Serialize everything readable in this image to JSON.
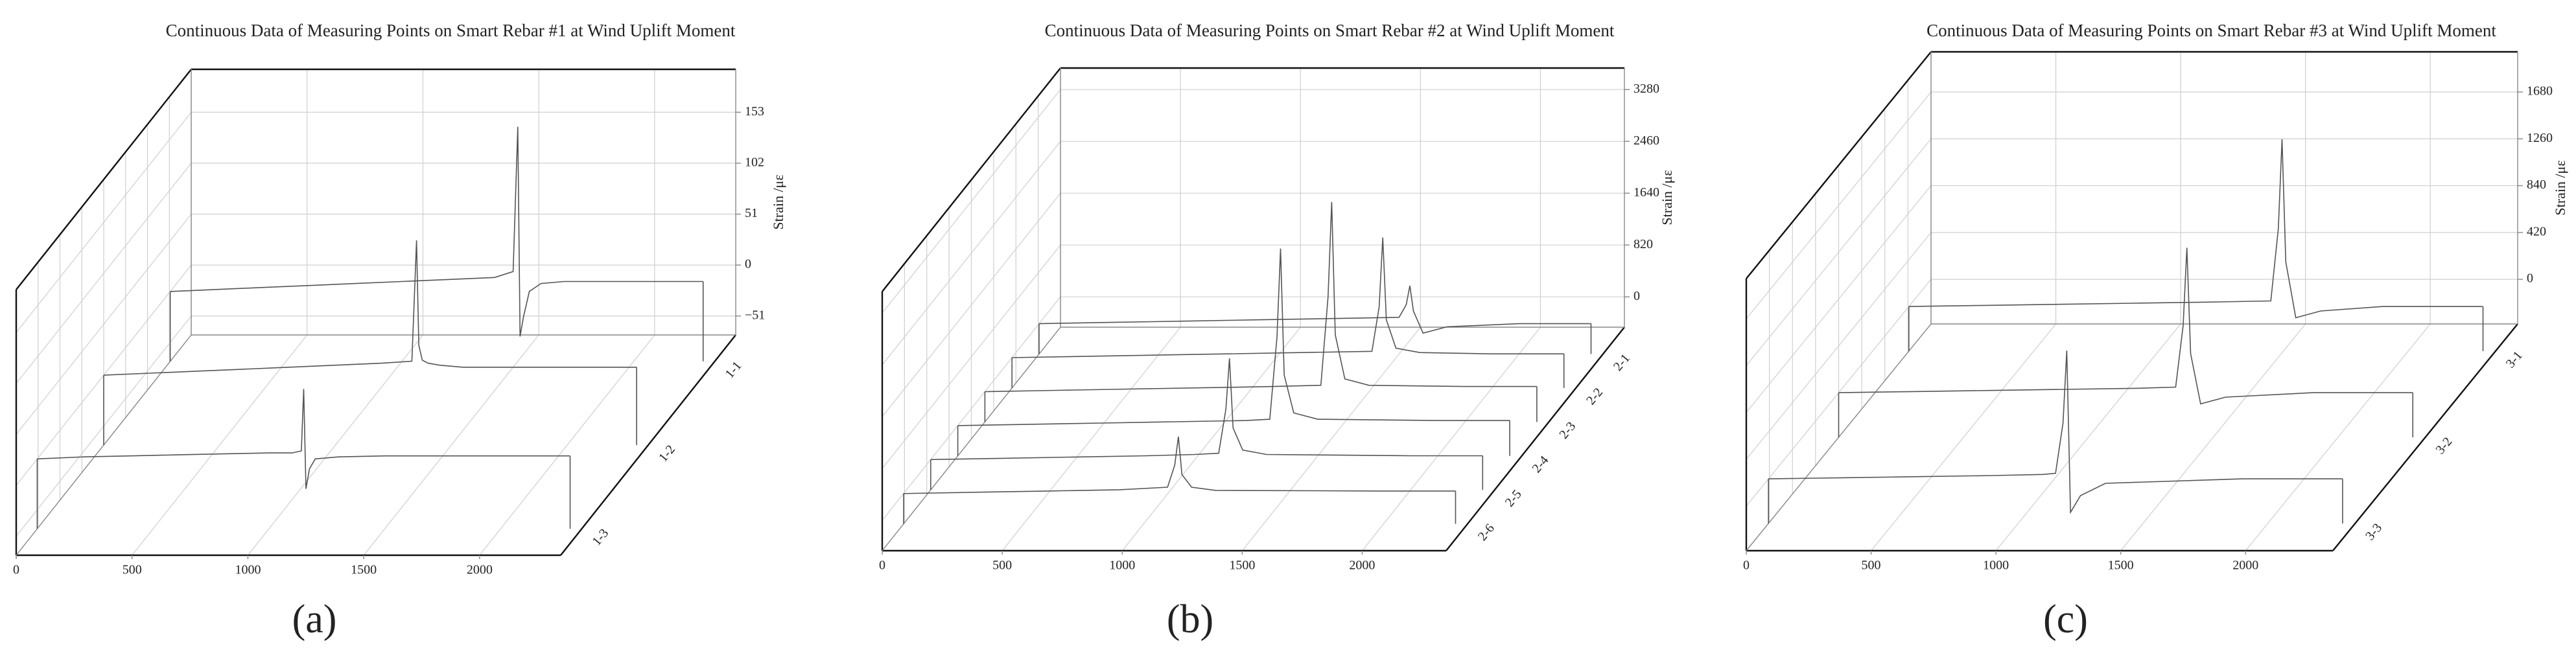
{
  "chart_data": [
    {
      "type": "waterfall3d",
      "title": "Continuous Data of Measuring Points on Smart Rebar #1 at Wind Uplift Moment",
      "panel_label": "(a)",
      "z_label": "Strain /με",
      "color": "#555555",
      "xlim": [
        0,
        2350
      ],
      "xticks": [
        0,
        500,
        1000,
        1500,
        2000
      ],
      "ylim": [
        -70,
        196
      ],
      "yticks": [
        {
          "value": -51,
          "label": "−51"
        },
        0,
        51,
        102,
        153
      ],
      "grid": true,
      "series": [
        {
          "name": "1-1",
          "x": [
            0,
            200,
            400,
            600,
            800,
            1000,
            1200,
            1400,
            1480,
            1500,
            1510,
            1525,
            1550,
            1600,
            1700,
            1900,
            2100,
            2300
          ],
          "values": [
            0,
            2,
            4,
            6,
            8,
            10,
            12,
            14,
            20,
            165,
            -45,
            -25,
            0,
            8,
            10,
            10,
            10,
            10
          ]
        },
        {
          "name": "1-2",
          "x": [
            0,
            200,
            400,
            600,
            800,
            1000,
            1200,
            1330,
            1350,
            1360,
            1375,
            1400,
            1450,
            1550,
            1700,
            1900,
            2100,
            2300
          ],
          "values": [
            0,
            2,
            4,
            6,
            8,
            10,
            12,
            14,
            135,
            30,
            15,
            12,
            10,
            8,
            8,
            8,
            8,
            8
          ]
        },
        {
          "name": "1-3",
          "x": [
            0,
            200,
            400,
            600,
            800,
            1000,
            1100,
            1140,
            1150,
            1160,
            1175,
            1200,
            1300,
            1500,
            1700,
            1900,
            2100,
            2300
          ],
          "values": [
            0,
            2,
            3,
            4,
            5,
            6,
            6,
            8,
            70,
            -30,
            -10,
            0,
            2,
            3,
            3,
            3,
            3,
            3
          ]
        }
      ]
    },
    {
      "type": "waterfall3d",
      "title": "Continuous Data of Measuring Points on Smart Rebar #2 at Wind Uplift Moment",
      "panel_label": "(b)",
      "z_label": "Strain /με",
      "color": "#555555",
      "xlim": [
        0,
        2350
      ],
      "xticks": [
        0,
        500,
        1000,
        1500,
        2000
      ],
      "ylim": [
        -480,
        3620
      ],
      "yticks": [
        0,
        820,
        1640,
        2460,
        3280
      ],
      "grid": true,
      "series": [
        {
          "name": "2-1",
          "x": [
            0,
            300,
            600,
            900,
            1200,
            1500,
            1530,
            1545,
            1560,
            1600,
            1700,
            2000,
            2300
          ],
          "values": [
            0,
            20,
            40,
            60,
            80,
            100,
            300,
            600,
            200,
            -150,
            -50,
            0,
            0
          ]
        },
        {
          "name": "2-2",
          "x": [
            0,
            300,
            600,
            900,
            1200,
            1500,
            1530,
            1545,
            1560,
            1600,
            1700,
            2000,
            2300
          ],
          "values": [
            0,
            20,
            40,
            60,
            80,
            100,
            800,
            1900,
            600,
            150,
            80,
            60,
            60
          ]
        },
        {
          "name": "2-3",
          "x": [
            0,
            300,
            600,
            900,
            1200,
            1400,
            1430,
            1445,
            1460,
            1500,
            1600,
            2000,
            2300
          ],
          "values": [
            0,
            20,
            40,
            60,
            80,
            100,
            1500,
            3000,
            900,
            200,
            100,
            80,
            80
          ]
        },
        {
          "name": "2-4",
          "x": [
            0,
            300,
            600,
            900,
            1200,
            1300,
            1330,
            1345,
            1360,
            1400,
            1500,
            2000,
            2300
          ],
          "values": [
            0,
            20,
            40,
            60,
            80,
            100,
            1400,
            2800,
            800,
            200,
            100,
            80,
            80
          ]
        },
        {
          "name": "2-5",
          "x": [
            0,
            300,
            600,
            900,
            1100,
            1200,
            1230,
            1245,
            1260,
            1300,
            1400,
            2000,
            2300
          ],
          "values": [
            0,
            20,
            40,
            60,
            80,
            100,
            800,
            1600,
            500,
            150,
            80,
            60,
            60
          ]
        },
        {
          "name": "2-6",
          "x": [
            0,
            300,
            600,
            900,
            1000,
            1100,
            1130,
            1145,
            1160,
            1200,
            1300,
            2000,
            2300
          ],
          "values": [
            0,
            20,
            40,
            60,
            80,
            100,
            450,
            900,
            300,
            100,
            50,
            40,
            40
          ]
        }
      ]
    },
    {
      "type": "waterfall3d",
      "title": "Continuous Data of Measuring Points on Smart Rebar #3 at Wind Uplift Moment",
      "panel_label": "(c)",
      "z_label": "Strain /με",
      "color": "#555555",
      "xlim": [
        0,
        2350
      ],
      "xticks": [
        0,
        500,
        1000,
        1500,
        2000
      ],
      "ylim": [
        -400,
        2040
      ],
      "yticks": [
        0,
        420,
        840,
        1260,
        1680
      ],
      "grid": true,
      "series": [
        {
          "name": "3-1",
          "x": [
            0,
            300,
            600,
            900,
            1200,
            1450,
            1480,
            1495,
            1510,
            1550,
            1650,
            1900,
            2300
          ],
          "values": [
            0,
            10,
            20,
            30,
            40,
            50,
            700,
            1500,
            400,
            -100,
            -40,
            0,
            0
          ]
        },
        {
          "name": "3-2",
          "x": [
            0,
            300,
            600,
            900,
            1200,
            1350,
            1380,
            1395,
            1410,
            1450,
            1550,
            1900,
            2300
          ],
          "values": [
            0,
            10,
            20,
            30,
            40,
            50,
            600,
            1300,
            350,
            -100,
            -40,
            0,
            0
          ]
        },
        {
          "name": "3-3",
          "x": [
            0,
            300,
            600,
            900,
            1100,
            1150,
            1180,
            1195,
            1210,
            1250,
            1350,
            1900,
            2300
          ],
          "values": [
            0,
            10,
            20,
            30,
            40,
            50,
            500,
            1150,
            -300,
            -150,
            -40,
            0,
            0
          ]
        }
      ]
    }
  ]
}
